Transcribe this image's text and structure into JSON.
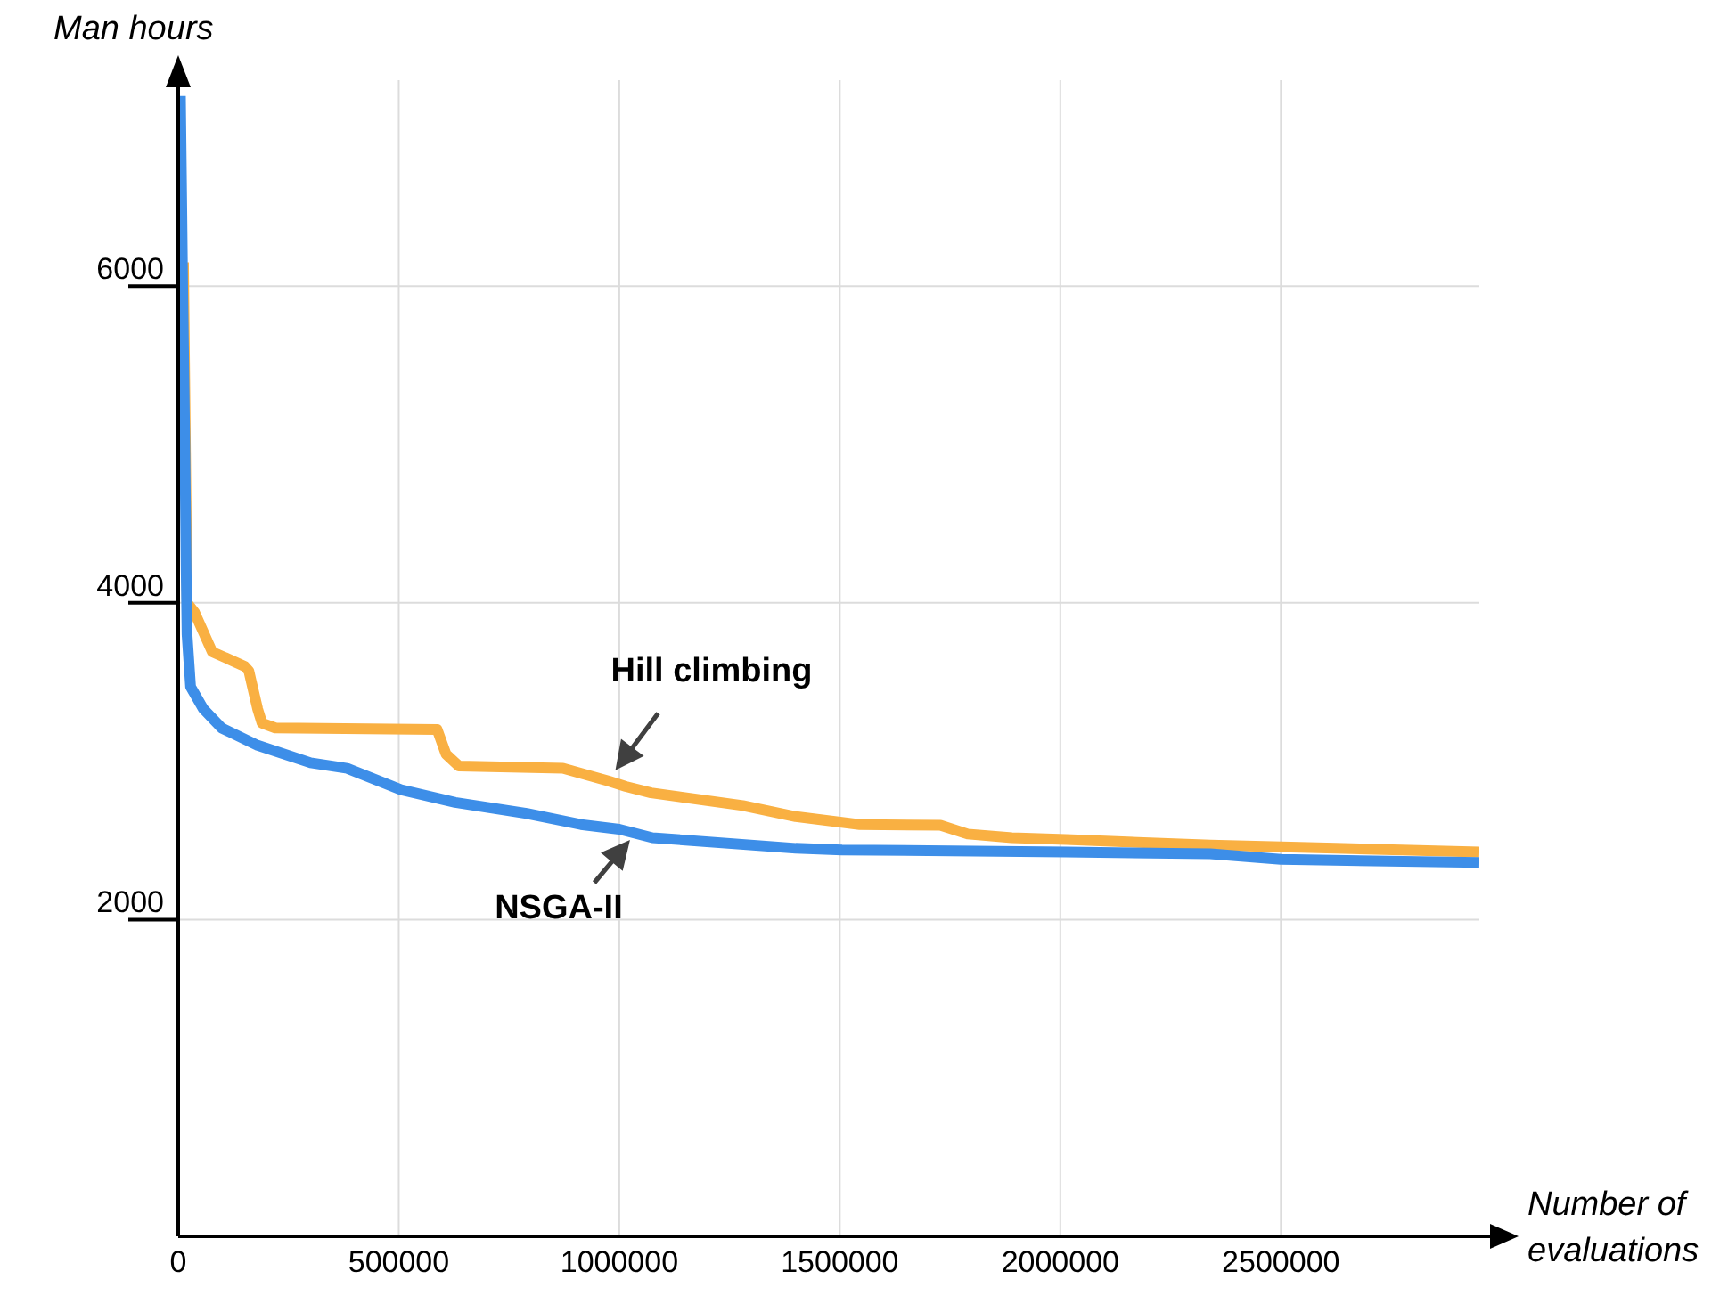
{
  "chart_data": {
    "type": "line",
    "xlabel": "Number of evaluations",
    "ylabel": "Man hours",
    "xlim": [
      0,
      2950000
    ],
    "xticks": [
      0,
      500000,
      1000000,
      1500000,
      2000000,
      2500000
    ],
    "ylim": [
      0,
      7300
    ],
    "yticks": [
      2000,
      4000,
      6000
    ],
    "grid": true,
    "marker": "none",
    "series": [
      {
        "name": "Hill climbing",
        "color": "#f9b042",
        "x": [
          12000,
          20000,
          37000,
          77000,
          150000,
          160000,
          180000,
          190000,
          220000,
          587000,
          607000,
          636000,
          872000,
          975000,
          1015000,
          1072000,
          1280000,
          1400000,
          1545000,
          1728000,
          1790000,
          1890000,
          2013000,
          2340000,
          2624000,
          2950000
        ],
        "values": [
          6150,
          4000,
          3940,
          3690,
          3600,
          3570,
          3330,
          3240,
          3210,
          3200,
          3045,
          2970,
          2955,
          2875,
          2840,
          2800,
          2720,
          2650,
          2600,
          2595,
          2540,
          2517,
          2505,
          2470,
          2450,
          2427
        ]
      },
      {
        "name": "NSGA-II",
        "color": "#3d8ee8",
        "x": [
          5000,
          8000,
          10000,
          15000,
          18000,
          20000,
          28000,
          57000,
          98000,
          180000,
          300000,
          383000,
          505000,
          628000,
          790000,
          913000,
          1000000,
          1075000,
          1400000,
          1505000,
          2013000,
          2340000,
          2500000,
          2950000
        ],
        "values": [
          7200,
          6500,
          6000,
          5000,
          4200,
          3800,
          3470,
          3330,
          3210,
          3100,
          2990,
          2955,
          2820,
          2740,
          2670,
          2600,
          2570,
          2517,
          2450,
          2440,
          2427,
          2415,
          2380,
          2360
        ]
      }
    ]
  }
}
